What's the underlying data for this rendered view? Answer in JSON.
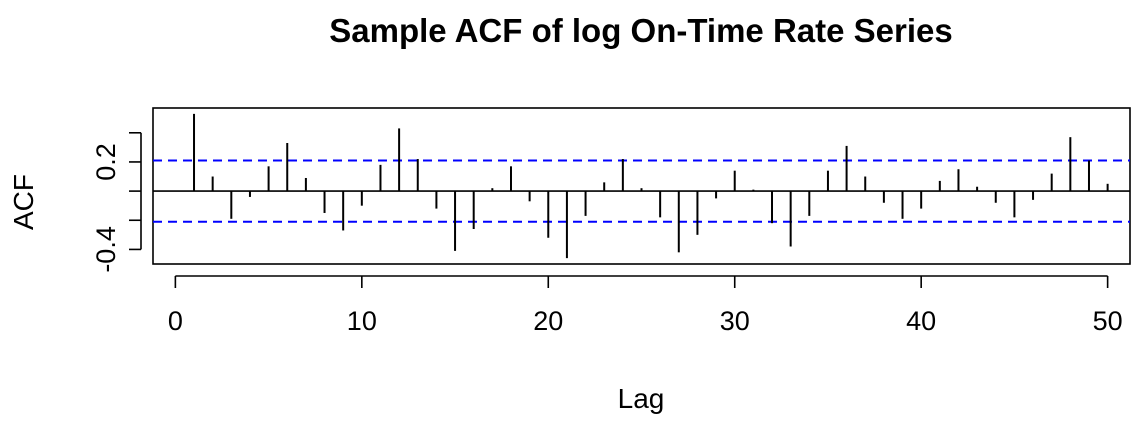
{
  "chart_data": {
    "type": "bar",
    "title": "Sample ACF of log On-Time Rate Series",
    "xlabel": "Lag",
    "ylabel": "ACF",
    "xlim": [
      -1.2,
      51.2
    ],
    "ylim": [
      -0.5,
      0.57
    ],
    "x_ticks": [
      0,
      10,
      20,
      30,
      40,
      50
    ],
    "x_tick_labels": [
      "0",
      "10",
      "20",
      "30",
      "40",
      "50"
    ],
    "y_ticks": [
      -0.4,
      0.2
    ],
    "y_tick_labels": [
      "-0.4",
      "0.2"
    ],
    "y_minor_ticks": [
      -0.2,
      0.0,
      0.4
    ],
    "confidence_bounds": [
      0.21,
      -0.21
    ],
    "lags": [
      1,
      2,
      3,
      4,
      5,
      6,
      7,
      8,
      9,
      10,
      11,
      12,
      13,
      14,
      15,
      16,
      17,
      18,
      19,
      20,
      21,
      22,
      23,
      24,
      25,
      26,
      27,
      28,
      29,
      30,
      31,
      32,
      33,
      34,
      35,
      36,
      37,
      38,
      39,
      40,
      41,
      42,
      43,
      44,
      45,
      46,
      47,
      48,
      49,
      50
    ],
    "values": [
      0.53,
      0.1,
      -0.19,
      -0.04,
      0.17,
      0.33,
      0.09,
      -0.15,
      -0.27,
      -0.1,
      0.18,
      0.43,
      0.22,
      -0.12,
      -0.41,
      -0.26,
      0.02,
      0.17,
      -0.07,
      -0.32,
      -0.46,
      -0.17,
      0.06,
      0.22,
      0.02,
      -0.18,
      -0.42,
      -0.3,
      -0.05,
      0.14,
      0.01,
      -0.22,
      -0.38,
      -0.17,
      0.14,
      0.31,
      0.1,
      -0.08,
      -0.19,
      -0.12,
      0.07,
      0.15,
      0.03,
      -0.08,
      -0.18,
      -0.06,
      0.12,
      0.37,
      0.21,
      0.05
    ],
    "colors": {
      "bars": "#000000",
      "confidence_line": "#0000ff",
      "axis": "#000000"
    }
  }
}
